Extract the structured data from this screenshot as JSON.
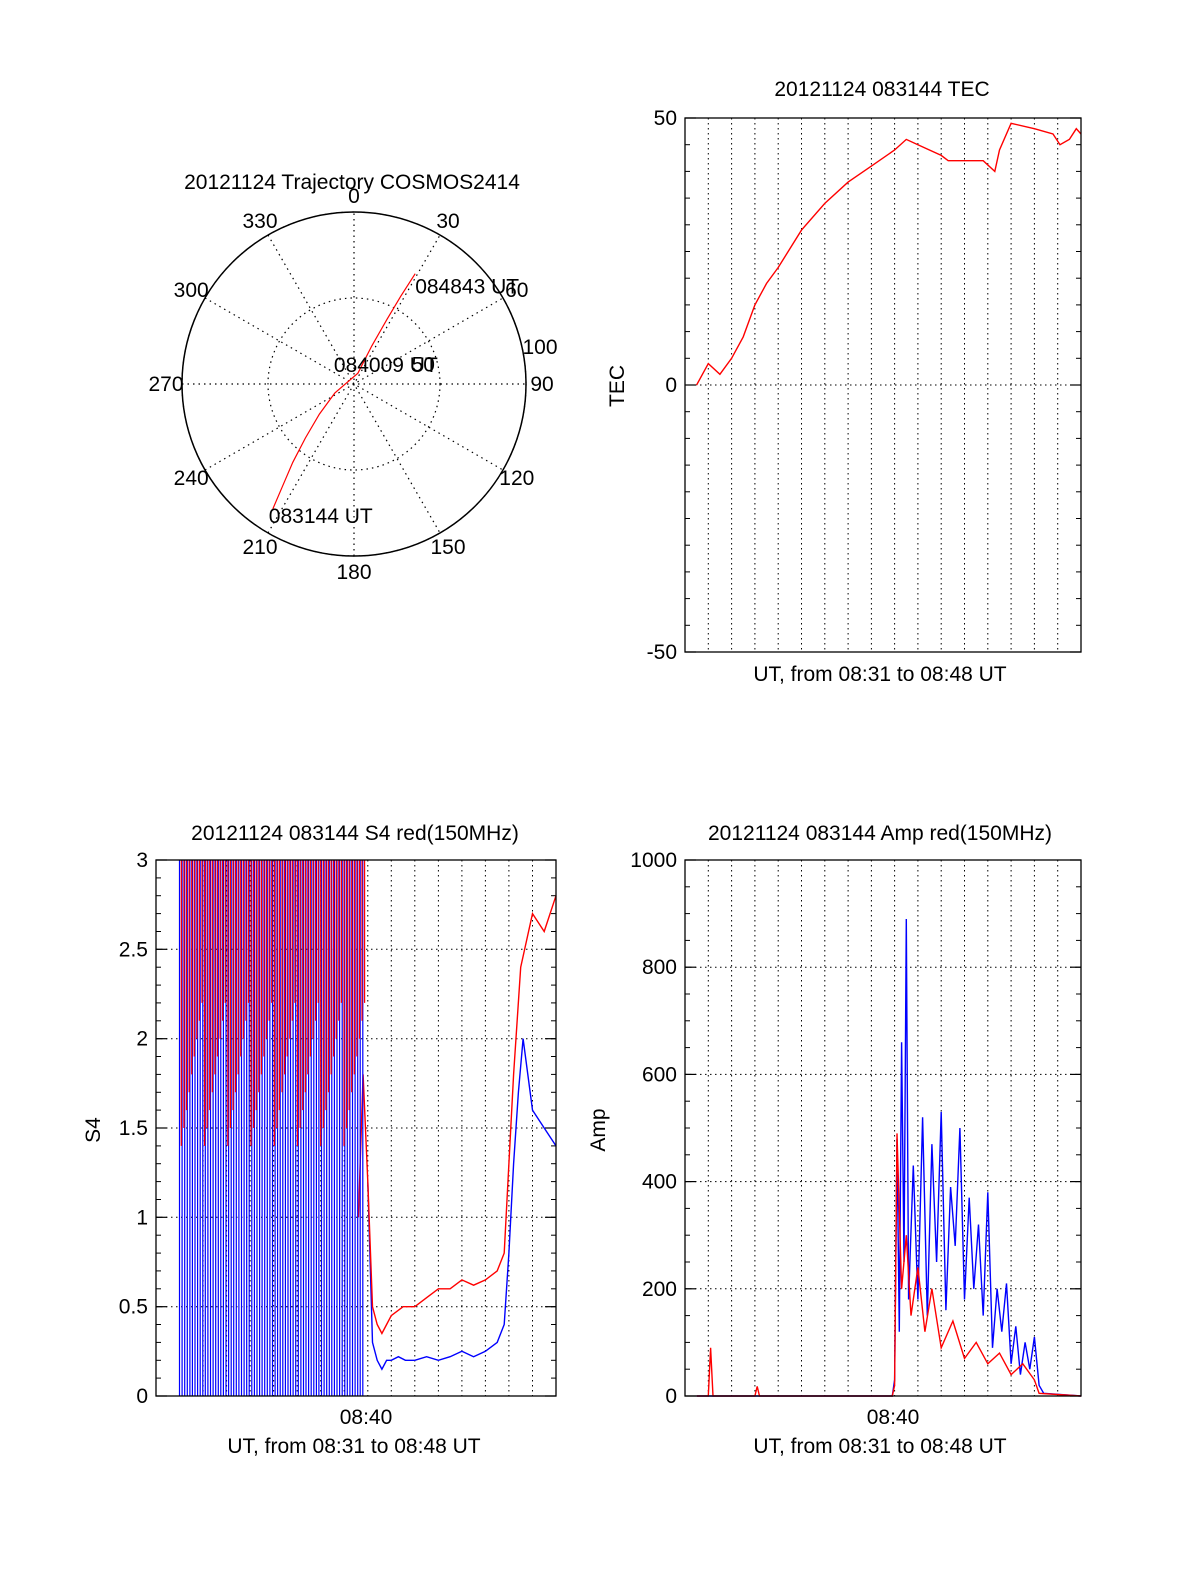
{
  "colors": {
    "red": "#ff0000",
    "blue": "#0000ff",
    "axis": "#000000",
    "grid": "#000000"
  },
  "chart_data": [
    {
      "id": "trajectory",
      "type": "polar-line",
      "title": "20121124 Trajectory COSMOS2414",
      "azimuth_labels": [
        "0",
        "30",
        "60",
        "90",
        "120",
        "150",
        "180",
        "210",
        "240",
        "270",
        "300",
        "330"
      ],
      "radial_labels": [
        "50",
        "100"
      ],
      "points": [
        {
          "az": 213,
          "el": 12,
          "label": "083144 UT"
        },
        {
          "az": 215,
          "el": 25
        },
        {
          "az": 218,
          "el": 38
        },
        {
          "az": 222,
          "el": 52
        },
        {
          "az": 229,
          "el": 66
        },
        {
          "az": 245,
          "el": 79
        },
        {
          "az": 20,
          "el": 84,
          "label": "084009 UT"
        },
        {
          "az": 25,
          "el": 68
        },
        {
          "az": 27,
          "el": 52
        },
        {
          "az": 28,
          "el": 38
        },
        {
          "az": 29,
          "el": 24,
          "label": "084843 UT"
        }
      ]
    },
    {
      "id": "tec",
      "type": "line",
      "title": "20121124 083144 TEC",
      "xlabel": "UT, from 08:31 to 08:48 UT",
      "ylabel": "TEC",
      "ylim": [
        -50,
        50
      ],
      "yticks": [
        "-50",
        "0",
        "50"
      ],
      "series": [
        {
          "color": "red",
          "x": [
            0.5,
            1.0,
            1.5,
            2.0,
            2.5,
            3.0,
            3.5,
            4.0,
            5.0,
            6.0,
            7.0,
            8.0,
            9.0,
            9.5,
            10.0,
            11.0,
            11.3,
            12.0,
            12.8,
            13.3,
            13.5,
            14.0,
            15.0,
            15.8,
            16.1,
            16.5,
            16.8,
            17.0
          ],
          "y": [
            0,
            4,
            2,
            5,
            9,
            15,
            19,
            22,
            29,
            34,
            38,
            41,
            44,
            46,
            45,
            43,
            42,
            42,
            42,
            40,
            44,
            49,
            48,
            47,
            45,
            46,
            48,
            47
          ]
        }
      ]
    },
    {
      "id": "s4",
      "type": "line",
      "title": "20121124 083144 S4 red(150MHz)",
      "xlabel": "UT, from 08:31 to 08:48 UT",
      "ylabel": "S4",
      "ylim": [
        0,
        3
      ],
      "yticks": [
        "0",
        "0.5",
        "1",
        "1.5",
        "2",
        "2.5",
        "3"
      ],
      "xtick_label": "08:40",
      "series": [
        {
          "color": "blue",
          "x": [
            9.0,
            9.2,
            9.4,
            9.6,
            9.8,
            10.0,
            10.3,
            10.6,
            11.0,
            11.5,
            12.0,
            12.5,
            13.0,
            13.5,
            14.0,
            14.5,
            14.8,
            15.0,
            15.2,
            15.4,
            15.6,
            15.8,
            16.0,
            16.5,
            17.0
          ],
          "y": [
            1.2,
            0.3,
            0.2,
            0.15,
            0.2,
            0.2,
            0.22,
            0.2,
            0.2,
            0.22,
            0.2,
            0.22,
            0.25,
            0.22,
            0.25,
            0.3,
            0.4,
            0.8,
            1.3,
            1.7,
            2.0,
            1.8,
            1.6,
            1.5,
            1.4
          ]
        },
        {
          "color": "red",
          "x": [
            8.6,
            8.8,
            9.0,
            9.2,
            9.4,
            9.6,
            9.8,
            10.0,
            10.5,
            11.0,
            11.5,
            12.0,
            12.5,
            13.0,
            13.5,
            14.0,
            14.5,
            14.8,
            15.0,
            15.2,
            15.5,
            16.0,
            16.5,
            17.0
          ],
          "y": [
            1.0,
            1.8,
            1.2,
            0.5,
            0.4,
            0.35,
            0.4,
            0.45,
            0.5,
            0.5,
            0.55,
            0.6,
            0.6,
            0.65,
            0.62,
            0.65,
            0.7,
            0.8,
            1.3,
            1.8,
            2.4,
            2.7,
            2.6,
            2.8
          ]
        }
      ]
    },
    {
      "id": "amp",
      "type": "line",
      "title": "20121124 083144 Amp red(150MHz)",
      "xlabel": "UT, from 08:31 to 08:48 UT",
      "ylabel": "Amp",
      "ylim": [
        0,
        1000
      ],
      "yticks": [
        "0",
        "200",
        "400",
        "600",
        "800",
        "1000"
      ],
      "xtick_label": "08:40",
      "series": [
        {
          "color": "blue",
          "x": [
            0.5,
            8.9,
            9.0,
            9.1,
            9.2,
            9.3,
            9.4,
            9.5,
            9.6,
            9.8,
            10.0,
            10.2,
            10.4,
            10.6,
            10.8,
            11.0,
            11.2,
            11.4,
            11.6,
            11.8,
            12.0,
            12.2,
            12.4,
            12.6,
            12.8,
            13.0,
            13.2,
            13.4,
            13.6,
            13.8,
            14.0,
            14.2,
            14.4,
            14.6,
            14.8,
            15.0,
            15.2,
            15.4,
            17.0
          ],
          "y": [
            0,
            0,
            30,
            480,
            120,
            660,
            250,
            890,
            180,
            430,
            180,
            520,
            150,
            470,
            250,
            530,
            160,
            390,
            280,
            500,
            180,
            370,
            200,
            320,
            150,
            380,
            90,
            200,
            120,
            210,
            60,
            130,
            40,
            100,
            50,
            110,
            20,
            5,
            0
          ]
        },
        {
          "color": "red",
          "x": [
            0.5,
            1.0,
            1.1,
            1.2,
            3.0,
            3.1,
            3.2,
            8.9,
            9.0,
            9.1,
            9.3,
            9.5,
            9.7,
            10.0,
            10.3,
            10.6,
            11.0,
            11.5,
            12.0,
            12.5,
            13.0,
            13.5,
            14.0,
            14.5,
            15.0,
            15.2,
            17.0
          ],
          "y": [
            0,
            0,
            90,
            0,
            0,
            18,
            0,
            0,
            20,
            490,
            200,
            300,
            150,
            240,
            120,
            200,
            90,
            140,
            70,
            100,
            60,
            80,
            40,
            60,
            30,
            5,
            0
          ]
        }
      ]
    }
  ]
}
